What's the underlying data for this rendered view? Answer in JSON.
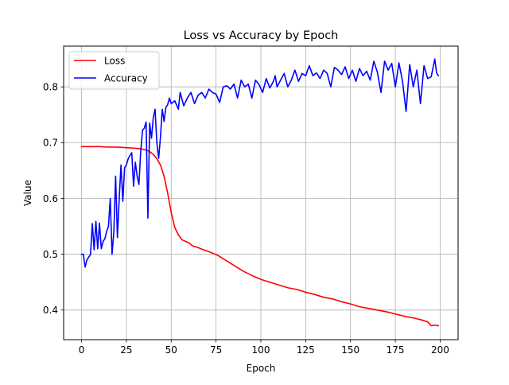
{
  "chart_data": {
    "type": "line",
    "title": "Loss vs Accuracy by Epoch",
    "xlabel": "Epoch",
    "ylabel": "Value",
    "xlim": [
      -10,
      210
    ],
    "ylim": [
      0.347,
      0.873
    ],
    "grid": true,
    "legend_placement": "top-left",
    "x_ticks": [
      "0",
      "25",
      "50",
      "75",
      "100",
      "125",
      "150",
      "175",
      "200"
    ],
    "y_ticks": [
      "0.4",
      "0.5",
      "0.6",
      "0.7",
      "0.8"
    ],
    "series": [
      {
        "name": "Loss",
        "color": "#ff0000",
        "points": [
          [
            0,
            0.693
          ],
          [
            5,
            0.693
          ],
          [
            10,
            0.693
          ],
          [
            15,
            0.692
          ],
          [
            20,
            0.692
          ],
          [
            25,
            0.691
          ],
          [
            30,
            0.69
          ],
          [
            33,
            0.689
          ],
          [
            36,
            0.687
          ],
          [
            38,
            0.684
          ],
          [
            40,
            0.679
          ],
          [
            42,
            0.671
          ],
          [
            44,
            0.66
          ],
          [
            46,
            0.64
          ],
          [
            48,
            0.61
          ],
          [
            50,
            0.575
          ],
          [
            52,
            0.548
          ],
          [
            54,
            0.535
          ],
          [
            56,
            0.526
          ],
          [
            58,
            0.523
          ],
          [
            60,
            0.52
          ],
          [
            62,
            0.515
          ],
          [
            65,
            0.512
          ],
          [
            68,
            0.508
          ],
          [
            70,
            0.506
          ],
          [
            73,
            0.502
          ],
          [
            76,
            0.498
          ],
          [
            80,
            0.49
          ],
          [
            85,
            0.48
          ],
          [
            90,
            0.47
          ],
          [
            95,
            0.462
          ],
          [
            100,
            0.455
          ],
          [
            105,
            0.45
          ],
          [
            110,
            0.445
          ],
          [
            115,
            0.44
          ],
          [
            120,
            0.437
          ],
          [
            125,
            0.432
          ],
          [
            130,
            0.428
          ],
          [
            135,
            0.423
          ],
          [
            140,
            0.42
          ],
          [
            145,
            0.415
          ],
          [
            150,
            0.411
          ],
          [
            155,
            0.406
          ],
          [
            160,
            0.403
          ],
          [
            165,
            0.4
          ],
          [
            170,
            0.397
          ],
          [
            175,
            0.393
          ],
          [
            180,
            0.389
          ],
          [
            185,
            0.386
          ],
          [
            190,
            0.382
          ],
          [
            193,
            0.379
          ],
          [
            195,
            0.372
          ],
          [
            197,
            0.373
          ],
          [
            199,
            0.372
          ]
        ]
      },
      {
        "name": "Accuracy",
        "color": "#0000ff",
        "points": [
          [
            0,
            0.5
          ],
          [
            1,
            0.5
          ],
          [
            2,
            0.477
          ],
          [
            3,
            0.49
          ],
          [
            4,
            0.495
          ],
          [
            5,
            0.5
          ],
          [
            6,
            0.555
          ],
          [
            7,
            0.508
          ],
          [
            8,
            0.559
          ],
          [
            9,
            0.51
          ],
          [
            10,
            0.556
          ],
          [
            11,
            0.51
          ],
          [
            12,
            0.523
          ],
          [
            13,
            0.528
          ],
          [
            14,
            0.541
          ],
          [
            15,
            0.55
          ],
          [
            16,
            0.6
          ],
          [
            17,
            0.5
          ],
          [
            18,
            0.54
          ],
          [
            19,
            0.64
          ],
          [
            20,
            0.53
          ],
          [
            21,
            0.6
          ],
          [
            22,
            0.66
          ],
          [
            23,
            0.595
          ],
          [
            24,
            0.655
          ],
          [
            25,
            0.66
          ],
          [
            26,
            0.671
          ],
          [
            27,
            0.677
          ],
          [
            28,
            0.682
          ],
          [
            29,
            0.622
          ],
          [
            30,
            0.665
          ],
          [
            31,
            0.64
          ],
          [
            32,
            0.625
          ],
          [
            33,
            0.685
          ],
          [
            34,
            0.722
          ],
          [
            35,
            0.726
          ],
          [
            36,
            0.737
          ],
          [
            37,
            0.565
          ],
          [
            38,
            0.735
          ],
          [
            39,
            0.708
          ],
          [
            40,
            0.745
          ],
          [
            41,
            0.76
          ],
          [
            42,
            0.7
          ],
          [
            43,
            0.672
          ],
          [
            44,
            0.71
          ],
          [
            45,
            0.76
          ],
          [
            46,
            0.738
          ],
          [
            47,
            0.763
          ],
          [
            48,
            0.768
          ],
          [
            49,
            0.78
          ],
          [
            50,
            0.77
          ],
          [
            52,
            0.775
          ],
          [
            54,
            0.76
          ],
          [
            55,
            0.79
          ],
          [
            57,
            0.766
          ],
          [
            59,
            0.78
          ],
          [
            61,
            0.79
          ],
          [
            63,
            0.77
          ],
          [
            65,
            0.785
          ],
          [
            67,
            0.79
          ],
          [
            69,
            0.78
          ],
          [
            71,
            0.796
          ],
          [
            73,
            0.79
          ],
          [
            75,
            0.787
          ],
          [
            77,
            0.772
          ],
          [
            79,
            0.8
          ],
          [
            81,
            0.802
          ],
          [
            83,
            0.796
          ],
          [
            85,
            0.805
          ],
          [
            87,
            0.78
          ],
          [
            89,
            0.812
          ],
          [
            91,
            0.8
          ],
          [
            93,
            0.805
          ],
          [
            95,
            0.78
          ],
          [
            97,
            0.812
          ],
          [
            99,
            0.804
          ],
          [
            101,
            0.79
          ],
          [
            103,
            0.815
          ],
          [
            105,
            0.798
          ],
          [
            107,
            0.81
          ],
          [
            108,
            0.82
          ],
          [
            109,
            0.8
          ],
          [
            111,
            0.812
          ],
          [
            113,
            0.824
          ],
          [
            115,
            0.8
          ],
          [
            117,
            0.812
          ],
          [
            119,
            0.83
          ],
          [
            121,
            0.81
          ],
          [
            123,
            0.824
          ],
          [
            125,
            0.82
          ],
          [
            127,
            0.838
          ],
          [
            129,
            0.82
          ],
          [
            131,
            0.825
          ],
          [
            133,
            0.815
          ],
          [
            135,
            0.83
          ],
          [
            137,
            0.824
          ],
          [
            139,
            0.8
          ],
          [
            141,
            0.835
          ],
          [
            143,
            0.83
          ],
          [
            145,
            0.822
          ],
          [
            147,
            0.836
          ],
          [
            149,
            0.815
          ],
          [
            151,
            0.83
          ],
          [
            153,
            0.81
          ],
          [
            155,
            0.833
          ],
          [
            157,
            0.82
          ],
          [
            159,
            0.828
          ],
          [
            161,
            0.812
          ],
          [
            163,
            0.846
          ],
          [
            165,
            0.826
          ],
          [
            167,
            0.79
          ],
          [
            169,
            0.846
          ],
          [
            171,
            0.83
          ],
          [
            173,
            0.842
          ],
          [
            175,
            0.8
          ],
          [
            177,
            0.843
          ],
          [
            179,
            0.81
          ],
          [
            181,
            0.756
          ],
          [
            183,
            0.84
          ],
          [
            185,
            0.8
          ],
          [
            187,
            0.83
          ],
          [
            189,
            0.77
          ],
          [
            191,
            0.838
          ],
          [
            193,
            0.815
          ],
          [
            195,
            0.818
          ],
          [
            197,
            0.85
          ],
          [
            198,
            0.825
          ],
          [
            199,
            0.82
          ]
        ]
      }
    ]
  }
}
